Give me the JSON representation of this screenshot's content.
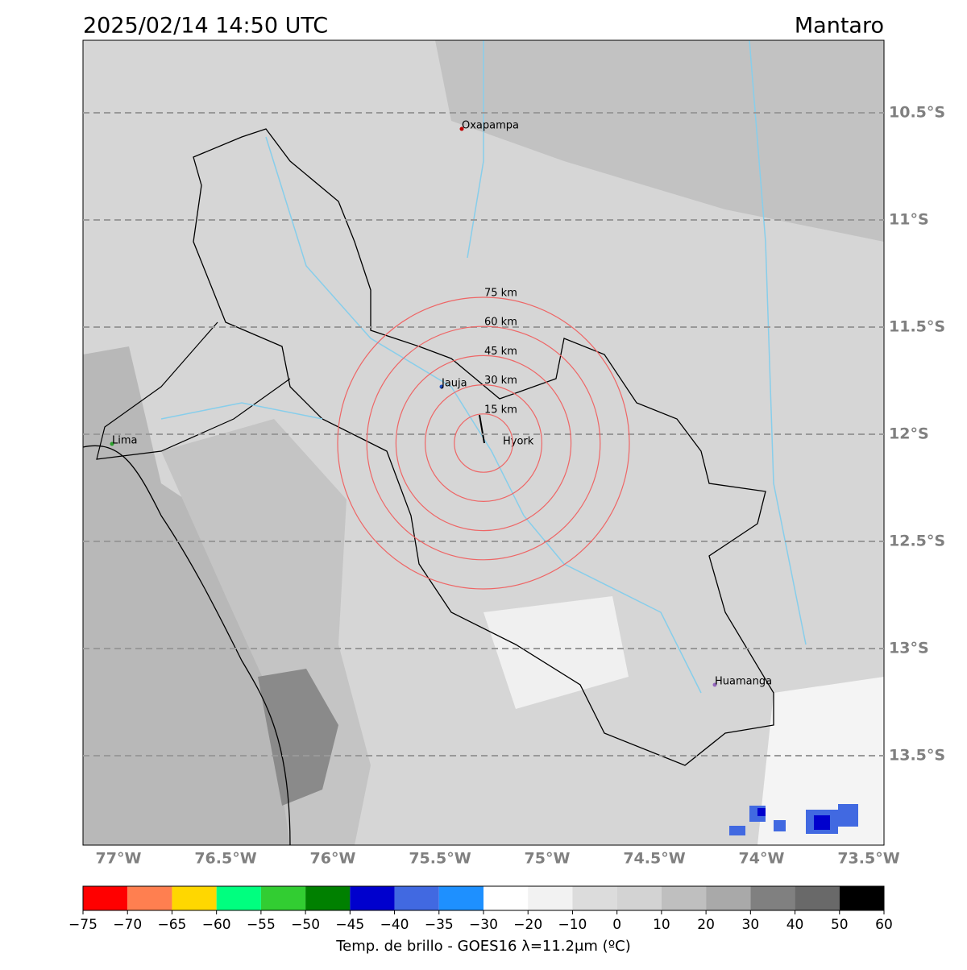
{
  "header": {
    "title": "2025/02/14 14:50 UTC",
    "region": "Mantaro"
  },
  "map": {
    "lat_labels": [
      "10.5°S",
      "11°S",
      "11.5°S",
      "12°S",
      "12.5°S",
      "13°S",
      "13.5°S"
    ],
    "lon_labels": [
      "77°W",
      "76.5°W",
      "76°W",
      "75.5°W",
      "75°W",
      "74.5°W",
      "74°W",
      "73.5°W"
    ],
    "cities": [
      "Oxapampa",
      "Jauja",
      "Lima",
      "Hyork",
      "Huamanga"
    ],
    "rings": [
      "15 km",
      "30 km",
      "45 km",
      "60 km",
      "75 km"
    ]
  },
  "colorbar": {
    "label": "Temp. de brillo - GOES16 λ=11.2μm (ºC)",
    "ticks": [
      "−75",
      "−70",
      "−65",
      "−60",
      "−55",
      "−50",
      "−45",
      "−40",
      "−35",
      "−30",
      "−20",
      "−10",
      "0",
      "10",
      "20",
      "30",
      "40",
      "50",
      "60"
    ],
    "colors": [
      "#ff0000",
      "#ff7f50",
      "#ffd700",
      "#00ff7f",
      "#32cd32",
      "#008000",
      "#0000cd",
      "#4169e1",
      "#1e90ff",
      "#ffffff",
      "#f2f2f2",
      "#dcdcdc",
      "#d3d3d3",
      "#bfbfbf",
      "#a9a9a9",
      "#808080",
      "#696969",
      "#000000"
    ]
  }
}
